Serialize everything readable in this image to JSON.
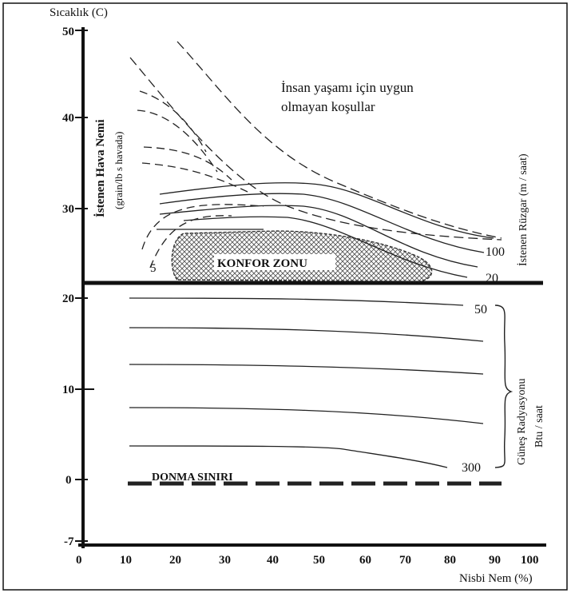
{
  "axes": {
    "y_title": "Sıcaklık (C)",
    "x_title": "Nisbi Nem (%)",
    "y_ticks": [
      "50",
      "40",
      "30",
      "20",
      "10",
      "0",
      "-7"
    ],
    "x_ticks": [
      "0",
      "10",
      "20",
      "30",
      "40",
      "50",
      "60",
      "70",
      "80",
      "90",
      "100"
    ]
  },
  "labels": {
    "unsuitable": [
      "İnsan yaşamı için uygun",
      "olmayan koşullar"
    ],
    "comfort_zone": "KONFOR ZONU",
    "freezing_limit": "DONMA SINIRI",
    "required_humidity": "İstenen Hava Nemi",
    "required_humidity_unit": "(grain/lb s havada)",
    "humidity_curve_value": "5",
    "required_wind": "İstenen Rüzgar (m / saat)",
    "wind_high": "100",
    "wind_low": "20",
    "solar_title": "Güneş Radyasyonu",
    "solar_unit": "Btu / saat",
    "solar_high": "50",
    "solar_low": "300"
  },
  "colors": {
    "ink": "#111111",
    "hatch": "#555555"
  }
}
